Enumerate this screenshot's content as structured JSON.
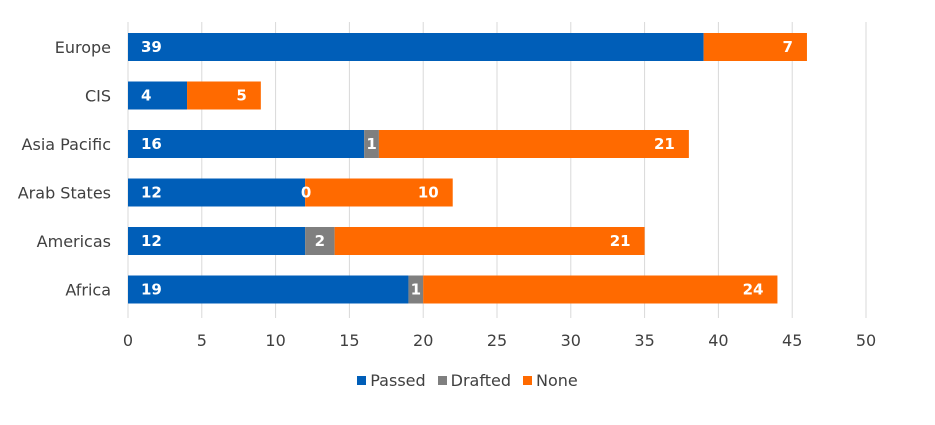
{
  "chart_data": {
    "type": "bar",
    "orientation": "horizontal",
    "stacked": true,
    "categories": [
      "Europe",
      "CIS",
      "Asia Pacific",
      "Arab States",
      "Americas",
      "Africa"
    ],
    "series": [
      {
        "name": "Passed",
        "color": "#005EB8",
        "values": [
          39,
          4,
          16,
          12,
          12,
          19
        ],
        "labels": [
          "39",
          "4",
          "16",
          "12",
          "12",
          "19"
        ]
      },
      {
        "name": "Drafted",
        "color": "#7F7F7F",
        "values": [
          0,
          0,
          1,
          0,
          2,
          1
        ],
        "labels": [
          "",
          "",
          "1",
          "0",
          "2",
          "1"
        ]
      },
      {
        "name": "None",
        "color": "#FF6A00",
        "values": [
          7,
          5,
          21,
          10,
          21,
          24
        ],
        "labels": [
          "7",
          "5",
          "21",
          "10",
          "21",
          "24"
        ]
      }
    ],
    "xlim": [
      0,
      50
    ],
    "xticks": [
      "0",
      "5",
      "10",
      "15",
      "20",
      "25",
      "30",
      "35",
      "40",
      "45",
      "50"
    ],
    "grid": "vertical",
    "legend_position": "bottom"
  }
}
